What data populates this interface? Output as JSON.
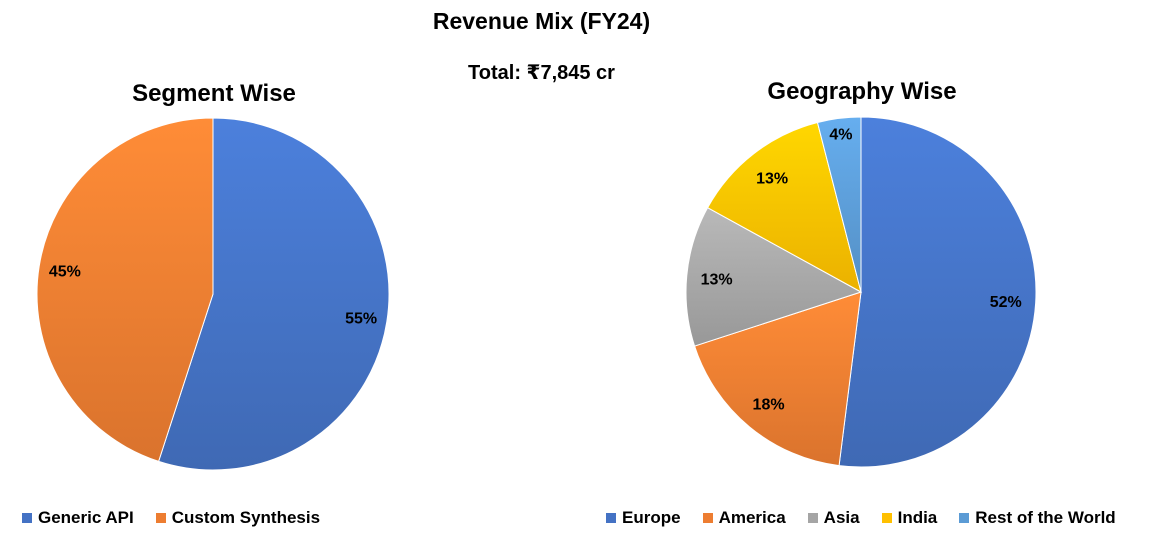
{
  "header": {
    "title": "Revenue Mix (FY24)",
    "subtitle": "Total: ₹7,845 cr"
  },
  "chart_data": [
    {
      "type": "pie",
      "title": "Segment Wise",
      "slices": [
        {
          "label": "Generic API",
          "value": 55,
          "display": "55%",
          "color": "#4472C4"
        },
        {
          "label": "Custom Synthesis",
          "value": 45,
          "display": "45%",
          "color": "#ED7D31"
        }
      ],
      "legend": "bottom"
    },
    {
      "type": "pie",
      "title": "Geography Wise",
      "slices": [
        {
          "label": "Europe",
          "value": 52,
          "display": "52%",
          "color": "#4472C4"
        },
        {
          "label": "America",
          "value": 18,
          "display": "18%",
          "color": "#ED7D31"
        },
        {
          "label": "Asia",
          "value": 13,
          "display": "13%",
          "color": "#A5A5A5"
        },
        {
          "label": "India",
          "value": 13,
          "display": "13%",
          "color": "#FFC000"
        },
        {
          "label": "Rest of the World",
          "value": 4,
          "display": "4%",
          "color": "#5B9BD5"
        }
      ],
      "legend": "bottom"
    }
  ]
}
